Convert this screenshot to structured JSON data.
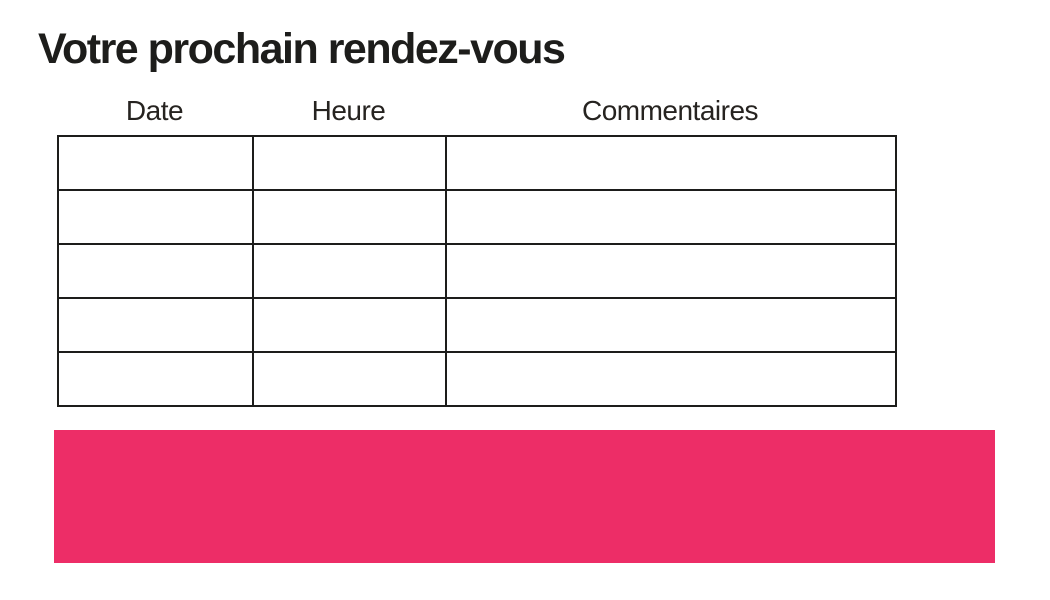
{
  "page": {
    "title": "Votre prochain rendez-vous",
    "background": "#FFFFFF"
  },
  "appointment_table": {
    "columns": [
      {
        "label": "Date"
      },
      {
        "label": "Heure"
      },
      {
        "label": "Commentaires"
      }
    ],
    "rows": [
      [
        "",
        "",
        ""
      ],
      [
        "",
        "",
        ""
      ],
      [
        "",
        "",
        ""
      ],
      [
        "",
        "",
        ""
      ],
      [
        "",
        "",
        ""
      ]
    ]
  },
  "footer_band": {
    "color": "#ED2D67"
  },
  "colors": {
    "text": "#1D1D1B",
    "table_border": "#1D1D1B",
    "accent_pink": "#ED2D67"
  }
}
